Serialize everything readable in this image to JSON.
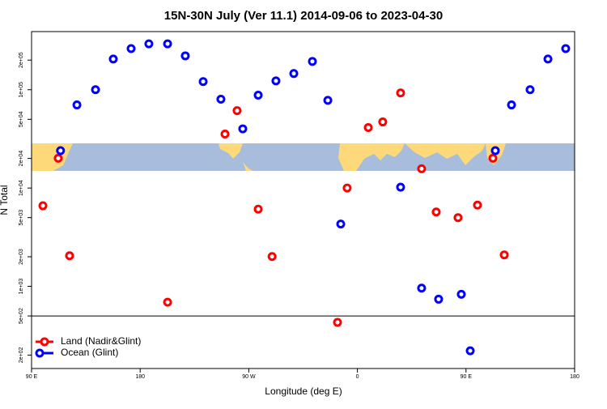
{
  "chart_data": {
    "type": "scatter",
    "title": "15N-30N July (Ver 11.1)   2014-09-06 to 2023-04-30",
    "x_label": "Longitude (deg E)",
    "y_label": "N Total",
    "log_y": true,
    "legend": "lower left",
    "hline": 500,
    "xlim": [
      90,
      540
    ],
    "ylim": [
      146,
      390000
    ],
    "xticks": [
      {
        "value": 90,
        "label": "90 E"
      },
      180,
      {
        "value": 270,
        "label": "90 W"
      },
      {
        "value": 360,
        "label": "0"
      },
      {
        "value": 450,
        "label": "90 E"
      },
      {
        "value": 540,
        "label": "180"
      }
    ],
    "yticks": [
      {
        "value": 200,
        "label": "2e+02"
      },
      {
        "value": 500,
        "label": "5e+02"
      },
      {
        "value": 1000,
        "label": "1e+03"
      },
      {
        "value": 2000,
        "label": "2e+03"
      },
      {
        "value": 5000,
        "label": "5e+03"
      },
      {
        "value": 10000,
        "label": "1e+04"
      },
      {
        "value": 20000,
        "label": "2e+04"
      },
      {
        "value": 50000,
        "label": "5e+04"
      },
      {
        "value": 100000,
        "label": "1e+05"
      },
      {
        "value": 200000,
        "label": "2e+05"
      }
    ],
    "series": [
      {
        "name": "Land (Nadir&Glint)",
        "color": "#ff0000",
        "x": [
          99.4,
          112.1,
          121.5,
          202.7,
          250.3,
          260.3,
          277.8,
          289.3,
          343.5,
          351.5,
          369,
          381,
          395.8,
          413.2,
          425.3,
          443.4,
          459.5,
          472.3,
          481.7
        ],
        "values": [
          6600,
          20100,
          2050,
          690,
          35400,
          61200,
          6100,
          2010,
          430,
          10000,
          41200,
          47000,
          92700,
          15700,
          5700,
          5000,
          6700,
          20100,
          2090
        ]
      },
      {
        "name": "Ocean (Glint)",
        "color": "#0000ff",
        "x": [
          114,
          127.6,
          143,
          157.7,
          172.5,
          187.2,
          202.7,
          217.4,
          232.2,
          246.9,
          265,
          277.8,
          292.5,
          307.3,
          322.7,
          335.5,
          346.2,
          395.8,
          413.2,
          427.3,
          446.1,
          453.5,
          474.3,
          487.7,
          503.1,
          517.9,
          532.6
        ],
        "values": [
          24000,
          70000,
          100000,
          205000,
          262000,
          293000,
          293000,
          221000,
          121000,
          80000,
          40000,
          88000,
          123000,
          146000,
          194000,
          78000,
          4300,
          10200,
          960,
          740,
          830,
          221,
          24000,
          70000,
          100000,
          205000,
          262000
        ]
      }
    ]
  }
}
